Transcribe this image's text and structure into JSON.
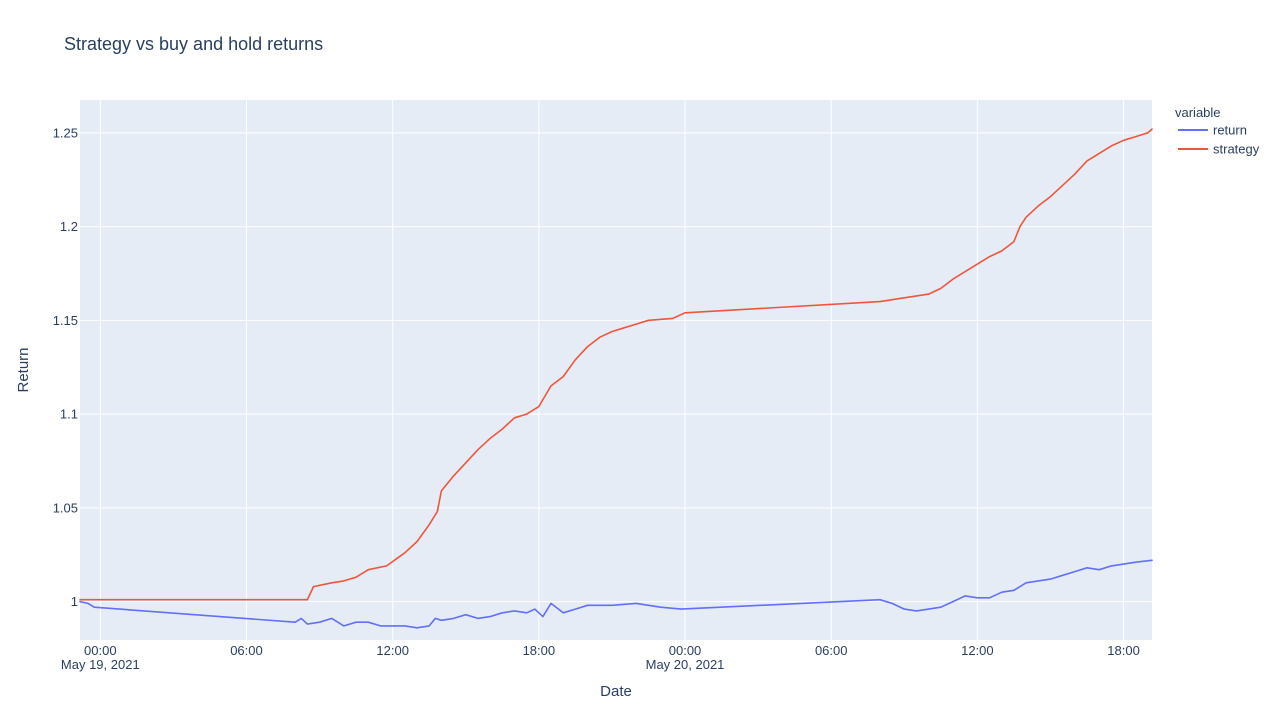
{
  "chart_data": {
    "type": "line",
    "title": "Strategy vs buy and hold returns",
    "xlabel": "Date",
    "ylabel": "Return",
    "legend_title": "variable",
    "legend_position": "right",
    "grid": true,
    "colors": {
      "plot_background": "#e5ecf6",
      "grid": "#ffffff",
      "text": "#2a3f5f"
    },
    "x_range": [
      "2021-05-18T23:10",
      "2021-05-20T19:10"
    ],
    "ylim": [
      0.9795,
      1.2675
    ],
    "x_ticks": [
      {
        "x": "2021-05-19T00:00",
        "label": "00:00",
        "sub": "May 19, 2021"
      },
      {
        "x": "2021-05-19T06:00",
        "label": "06:00",
        "sub": ""
      },
      {
        "x": "2021-05-19T12:00",
        "label": "12:00",
        "sub": ""
      },
      {
        "x": "2021-05-19T18:00",
        "label": "18:00",
        "sub": ""
      },
      {
        "x": "2021-05-20T00:00",
        "label": "00:00",
        "sub": "May 20, 2021"
      },
      {
        "x": "2021-05-20T06:00",
        "label": "06:00",
        "sub": ""
      },
      {
        "x": "2021-05-20T12:00",
        "label": "12:00",
        "sub": ""
      },
      {
        "x": "2021-05-20T18:00",
        "label": "18:00",
        "sub": ""
      }
    ],
    "y_ticks": [
      {
        "value": 1,
        "label": "1"
      },
      {
        "value": 1.05,
        "label": "1.05"
      },
      {
        "value": 1.1,
        "label": "1.1"
      },
      {
        "value": 1.15,
        "label": "1.15"
      },
      {
        "value": 1.2,
        "label": "1.2"
      },
      {
        "value": 1.25,
        "label": "1.25"
      }
    ],
    "series": [
      {
        "name": "return",
        "color": "#636efa",
        "points": [
          [
            "2021-05-18T23:10",
            1.0
          ],
          [
            "2021-05-18T23:30",
            0.999
          ],
          [
            "2021-05-18T23:45",
            0.997
          ],
          [
            "2021-05-19T08:00",
            0.989
          ],
          [
            "2021-05-19T08:15",
            0.991
          ],
          [
            "2021-05-19T08:30",
            0.988
          ],
          [
            "2021-05-19T09:00",
            0.989
          ],
          [
            "2021-05-19T09:30",
            0.991
          ],
          [
            "2021-05-19T10:00",
            0.987
          ],
          [
            "2021-05-19T10:30",
            0.989
          ],
          [
            "2021-05-19T11:00",
            0.989
          ],
          [
            "2021-05-19T11:30",
            0.987
          ],
          [
            "2021-05-19T12:00",
            0.987
          ],
          [
            "2021-05-19T12:30",
            0.987
          ],
          [
            "2021-05-19T13:00",
            0.986
          ],
          [
            "2021-05-19T13:30",
            0.987
          ],
          [
            "2021-05-19T13:45",
            0.991
          ],
          [
            "2021-05-19T14:00",
            0.99
          ],
          [
            "2021-05-19T14:30",
            0.991
          ],
          [
            "2021-05-19T15:00",
            0.993
          ],
          [
            "2021-05-19T15:30",
            0.991
          ],
          [
            "2021-05-19T16:00",
            0.992
          ],
          [
            "2021-05-19T16:30",
            0.994
          ],
          [
            "2021-05-19T17:00",
            0.995
          ],
          [
            "2021-05-19T17:30",
            0.994
          ],
          [
            "2021-05-19T17:50",
            0.996
          ],
          [
            "2021-05-19T18:10",
            0.992
          ],
          [
            "2021-05-19T18:30",
            0.999
          ],
          [
            "2021-05-19T19:00",
            0.994
          ],
          [
            "2021-05-19T19:30",
            0.996
          ],
          [
            "2021-05-19T20:00",
            0.998
          ],
          [
            "2021-05-19T21:00",
            0.998
          ],
          [
            "2021-05-19T22:00",
            0.999
          ],
          [
            "2021-05-19T23:00",
            0.997
          ],
          [
            "2021-05-19T23:50",
            0.996
          ],
          [
            "2021-05-20T08:00",
            1.001
          ],
          [
            "2021-05-20T08:30",
            0.999
          ],
          [
            "2021-05-20T09:00",
            0.996
          ],
          [
            "2021-05-20T09:30",
            0.995
          ],
          [
            "2021-05-20T10:00",
            0.996
          ],
          [
            "2021-05-20T10:30",
            0.997
          ],
          [
            "2021-05-20T11:00",
            1.0
          ],
          [
            "2021-05-20T11:30",
            1.003
          ],
          [
            "2021-05-20T12:00",
            1.002
          ],
          [
            "2021-05-20T12:30",
            1.002
          ],
          [
            "2021-05-20T13:00",
            1.005
          ],
          [
            "2021-05-20T13:30",
            1.006
          ],
          [
            "2021-05-20T14:00",
            1.01
          ],
          [
            "2021-05-20T14:30",
            1.011
          ],
          [
            "2021-05-20T15:00",
            1.012
          ],
          [
            "2021-05-20T15:30",
            1.014
          ],
          [
            "2021-05-20T16:00",
            1.016
          ],
          [
            "2021-05-20T16:30",
            1.018
          ],
          [
            "2021-05-20T17:00",
            1.017
          ],
          [
            "2021-05-20T17:30",
            1.019
          ],
          [
            "2021-05-20T18:00",
            1.02
          ],
          [
            "2021-05-20T18:30",
            1.021
          ],
          [
            "2021-05-20T19:10",
            1.022
          ]
        ]
      },
      {
        "name": "strategy",
        "color": "#ef553b",
        "points": [
          [
            "2021-05-18T23:10",
            1.001
          ],
          [
            "2021-05-18T23:30",
            1.001
          ],
          [
            "2021-05-19T08:30",
            1.001
          ],
          [
            "2021-05-19T08:45",
            1.008
          ],
          [
            "2021-05-19T09:30",
            1.01
          ],
          [
            "2021-05-19T10:00",
            1.011
          ],
          [
            "2021-05-19T10:30",
            1.013
          ],
          [
            "2021-05-19T11:00",
            1.017
          ],
          [
            "2021-05-19T11:45",
            1.019
          ],
          [
            "2021-05-19T12:30",
            1.026
          ],
          [
            "2021-05-19T13:00",
            1.032
          ],
          [
            "2021-05-19T13:30",
            1.041
          ],
          [
            "2021-05-19T13:50",
            1.048
          ],
          [
            "2021-05-19T14:00",
            1.059
          ],
          [
            "2021-05-19T14:30",
            1.067
          ],
          [
            "2021-05-19T15:00",
            1.074
          ],
          [
            "2021-05-19T15:30",
            1.081
          ],
          [
            "2021-05-19T16:00",
            1.087
          ],
          [
            "2021-05-19T16:30",
            1.092
          ],
          [
            "2021-05-19T17:00",
            1.098
          ],
          [
            "2021-05-19T17:30",
            1.1
          ],
          [
            "2021-05-19T18:00",
            1.104
          ],
          [
            "2021-05-19T18:30",
            1.115
          ],
          [
            "2021-05-19T19:00",
            1.12
          ],
          [
            "2021-05-19T19:30",
            1.129
          ],
          [
            "2021-05-19T20:00",
            1.136
          ],
          [
            "2021-05-19T20:30",
            1.141
          ],
          [
            "2021-05-19T21:00",
            1.144
          ],
          [
            "2021-05-19T21:30",
            1.146
          ],
          [
            "2021-05-19T22:00",
            1.148
          ],
          [
            "2021-05-19T22:30",
            1.15
          ],
          [
            "2021-05-19T23:30",
            1.151
          ],
          [
            "2021-05-20T00:00",
            1.154
          ],
          [
            "2021-05-20T08:00",
            1.16
          ],
          [
            "2021-05-20T08:30",
            1.161
          ],
          [
            "2021-05-20T09:00",
            1.162
          ],
          [
            "2021-05-20T09:30",
            1.163
          ],
          [
            "2021-05-20T10:00",
            1.164
          ],
          [
            "2021-05-20T10:30",
            1.167
          ],
          [
            "2021-05-20T11:00",
            1.172
          ],
          [
            "2021-05-20T11:30",
            1.176
          ],
          [
            "2021-05-20T12:00",
            1.18
          ],
          [
            "2021-05-20T12:30",
            1.184
          ],
          [
            "2021-05-20T13:00",
            1.187
          ],
          [
            "2021-05-20T13:30",
            1.192
          ],
          [
            "2021-05-20T13:45",
            1.2
          ],
          [
            "2021-05-20T14:00",
            1.205
          ],
          [
            "2021-05-20T14:30",
            1.211
          ],
          [
            "2021-05-20T15:00",
            1.216
          ],
          [
            "2021-05-20T15:30",
            1.222
          ],
          [
            "2021-05-20T16:00",
            1.228
          ],
          [
            "2021-05-20T16:30",
            1.235
          ],
          [
            "2021-05-20T17:00",
            1.239
          ],
          [
            "2021-05-20T17:30",
            1.243
          ],
          [
            "2021-05-20T18:00",
            1.246
          ],
          [
            "2021-05-20T18:30",
            1.248
          ],
          [
            "2021-05-20T19:00",
            1.25
          ],
          [
            "2021-05-20T19:10",
            1.252
          ]
        ]
      }
    ]
  }
}
